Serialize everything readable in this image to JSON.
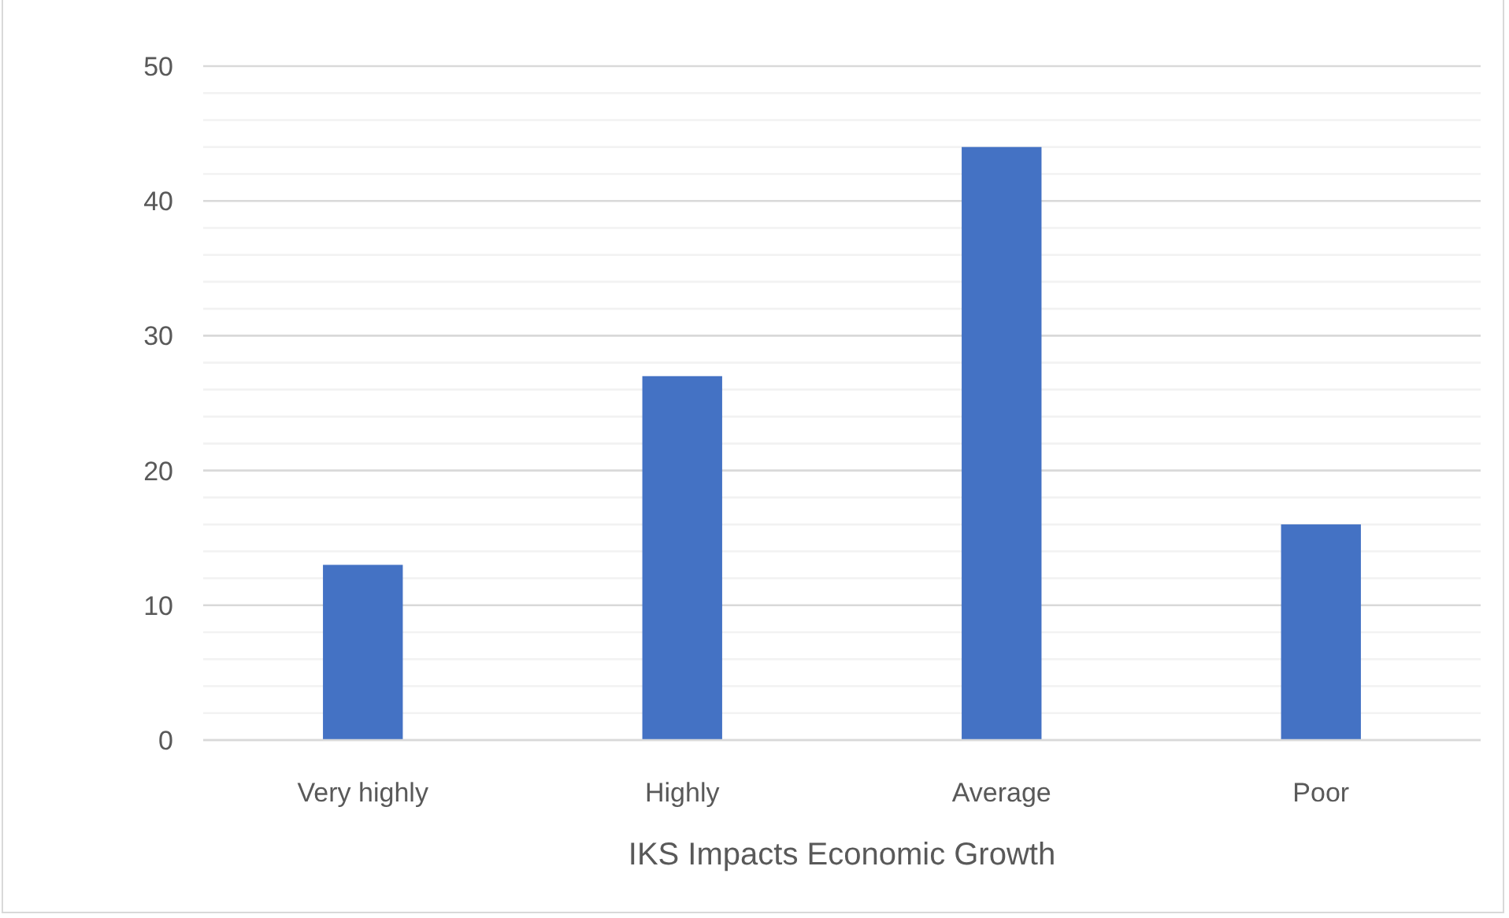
{
  "chart_data": {
    "type": "bar",
    "xlabel": "IKS Impacts Economic Growth",
    "categories": [
      "Very highly",
      "Highly",
      "Average",
      "Poor"
    ],
    "values": [
      13,
      27,
      44,
      16
    ],
    "color": "#4472c4",
    "ylim": [
      0,
      50
    ],
    "yticks": [
      0,
      {
        "value": 2,
        "label": null
      },
      {
        "value": 4,
        "label": null
      },
      {
        "value": 6,
        "label": null
      },
      {
        "value": 8,
        "label": null
      },
      10,
      {
        "value": 12,
        "label": null
      },
      {
        "value": 14,
        "label": null
      },
      {
        "value": 16,
        "label": null
      },
      {
        "value": 18,
        "label": null
      },
      20,
      {
        "value": 22,
        "label": null
      },
      {
        "value": 24,
        "label": null
      },
      {
        "value": 26,
        "label": null
      },
      {
        "value": 28,
        "label": null
      },
      30,
      {
        "value": 32,
        "label": null
      },
      {
        "value": 34,
        "label": null
      },
      {
        "value": 36,
        "label": null
      },
      {
        "value": 38,
        "label": null
      },
      40,
      {
        "value": 42,
        "label": null
      },
      {
        "value": 44,
        "label": null
      },
      {
        "value": 46,
        "label": null
      },
      {
        "value": 48,
        "label": null
      },
      50
    ],
    "grid": true
  }
}
